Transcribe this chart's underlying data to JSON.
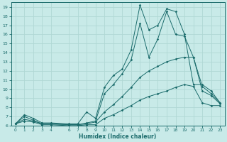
{
  "xlabel": "Humidex (Indice chaleur)",
  "xlim": [
    -0.5,
    23.5
  ],
  "ylim": [
    6,
    19.5
  ],
  "xticks": [
    0,
    1,
    2,
    3,
    4,
    6,
    7,
    8,
    9,
    10,
    11,
    12,
    13,
    14,
    15,
    16,
    17,
    18,
    19,
    20,
    21,
    22,
    23
  ],
  "yticks": [
    6,
    7,
    8,
    9,
    10,
    11,
    12,
    13,
    14,
    15,
    16,
    17,
    18,
    19
  ],
  "bg_color": "#c8eae8",
  "grid_color": "#b0d8d4",
  "line_color": "#1a6b6b",
  "series": [
    {
      "x": [
        0,
        1,
        2,
        3,
        4,
        6,
        7,
        8,
        9,
        10,
        11,
        12,
        13,
        14,
        15,
        16,
        17,
        18,
        19,
        20,
        21,
        22,
        23
      ],
      "y": [
        6.2,
        7.2,
        6.8,
        6.3,
        6.3,
        6.2,
        6.2,
        7.5,
        6.8,
        10.2,
        11.5,
        12.2,
        14.3,
        19.2,
        16.5,
        17.0,
        18.8,
        18.5,
        16.0,
        10.5,
        10.5,
        9.8,
        8.5
      ]
    },
    {
      "x": [
        0,
        1,
        2,
        3,
        4,
        6,
        7,
        8,
        9,
        10,
        11,
        12,
        13,
        14,
        15,
        16,
        17,
        18,
        19,
        20,
        21,
        22,
        23
      ],
      "y": [
        6.2,
        7.0,
        6.6,
        6.2,
        6.2,
        6.1,
        6.1,
        6.3,
        6.5,
        9.5,
        10.5,
        11.7,
        13.2,
        17.2,
        13.5,
        15.5,
        18.5,
        16.0,
        15.8,
        13.5,
        9.8,
        9.3,
        8.4
      ]
    },
    {
      "x": [
        0,
        1,
        2,
        3,
        4,
        6,
        7,
        8,
        9,
        10,
        11,
        12,
        13,
        14,
        15,
        16,
        17,
        18,
        19,
        20,
        21,
        22,
        23
      ],
      "y": [
        6.2,
        6.7,
        6.5,
        6.2,
        6.2,
        6.1,
        6.1,
        6.2,
        6.4,
        7.5,
        8.3,
        9.2,
        10.2,
        11.3,
        12.0,
        12.5,
        13.0,
        13.3,
        13.5,
        13.5,
        10.3,
        9.5,
        8.5
      ]
    },
    {
      "x": [
        0,
        1,
        2,
        3,
        4,
        6,
        7,
        8,
        9,
        10,
        11,
        12,
        13,
        14,
        15,
        16,
        17,
        18,
        19,
        20,
        21,
        22,
        23
      ],
      "y": [
        6.2,
        6.5,
        6.4,
        6.1,
        6.1,
        6.0,
        6.0,
        6.1,
        6.1,
        6.8,
        7.2,
        7.7,
        8.2,
        8.8,
        9.2,
        9.5,
        9.8,
        10.2,
        10.5,
        10.3,
        8.5,
        8.2,
        8.2
      ]
    }
  ]
}
